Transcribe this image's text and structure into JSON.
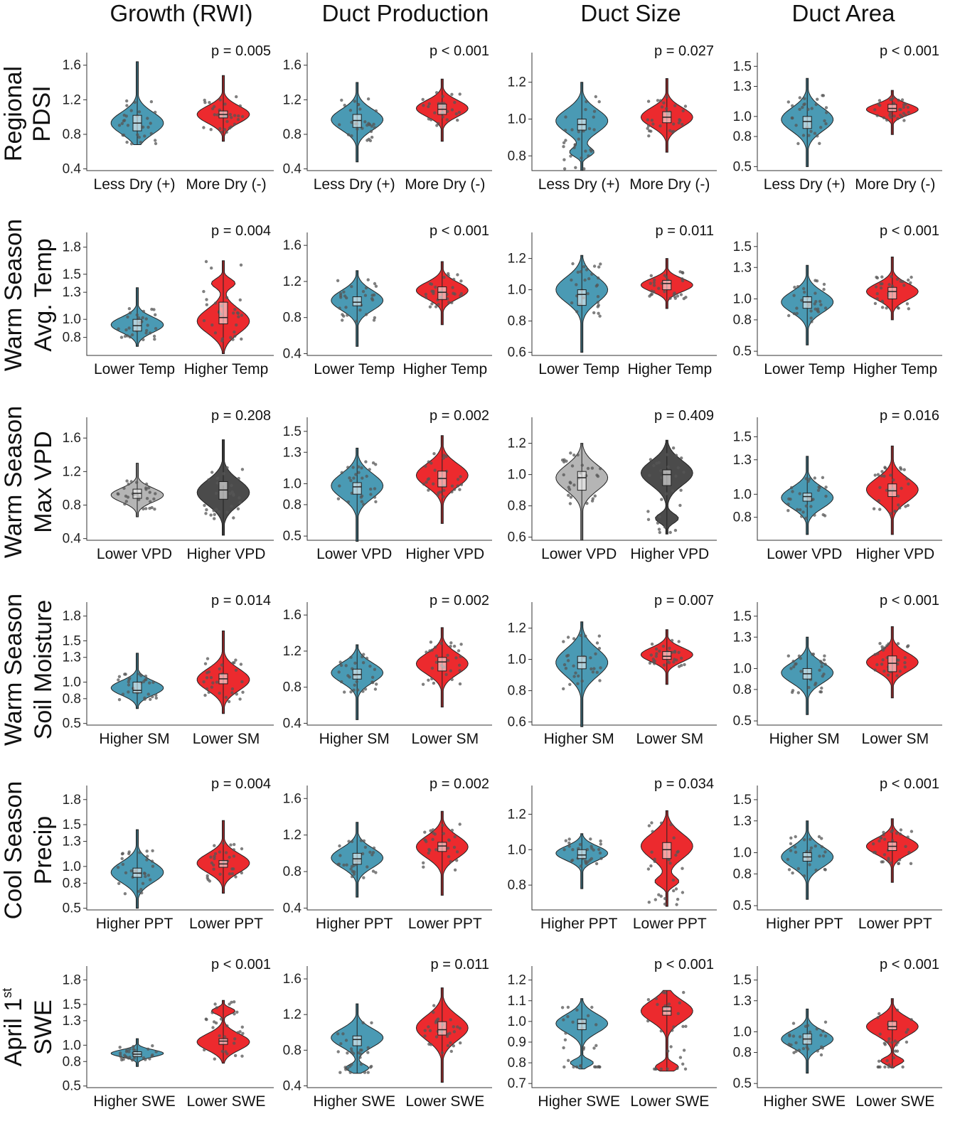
{
  "colors": {
    "blue": "#4a9ab4",
    "red": "#ec2a2e",
    "lightgray": "#b5b5b5",
    "darkgray": "#4b4b4b"
  },
  "columns": [
    "Growth (RWI)",
    "Duct Production",
    "Duct Size",
    "Duct Area"
  ],
  "rows": [
    {
      "title": [
        "Regional",
        "PDSI"
      ],
      "categories": [
        "Less Dry (+)",
        "More Dry (-)"
      ],
      "palette": [
        "blue",
        "red"
      ]
    },
    {
      "title": [
        "Warm Season",
        "Avg. Temp"
      ],
      "categories": [
        "Lower Temp",
        "Higher Temp"
      ],
      "palette": [
        "blue",
        "red"
      ]
    },
    {
      "title": [
        "Warm Season",
        "Max VPD"
      ],
      "categories": [
        "Lower VPD",
        "Higher VPD"
      ],
      "palette": [
        "blue",
        "red"
      ]
    },
    {
      "title": [
        "Warm Season",
        "Soil Moisture"
      ],
      "categories": [
        "Higher SM",
        "Lower SM"
      ],
      "palette": [
        "blue",
        "red"
      ]
    },
    {
      "title": [
        "Cool Season",
        "Precip"
      ],
      "categories": [
        "Higher PPT",
        "Lower PPT"
      ],
      "palette": [
        "blue",
        "red"
      ]
    },
    {
      "title": [
        "April 1",
        "SWE"
      ],
      "title_sup": "st",
      "categories": [
        "Higher SWE",
        "Lower SWE"
      ],
      "palette": [
        "blue",
        "red"
      ]
    }
  ],
  "chart_data": [
    {
      "type": "violin",
      "row": 0,
      "col": 0,
      "p_label": "p = 0.005",
      "yticks": [
        "0.4",
        "0.8",
        "1.2",
        "1.6"
      ],
      "ylim": [
        0.38,
        1.68
      ],
      "medians": [
        0.93,
        1.03
      ],
      "box": [
        [
          0.84,
          1.02
        ],
        [
          0.99,
          1.07
        ]
      ],
      "range": [
        [
          0.68,
          1.64
        ],
        [
          0.72,
          1.48
        ]
      ],
      "modes": [
        [
          0.93
        ],
        [
          1.03
        ]
      ]
    },
    {
      "type": "violin",
      "row": 0,
      "col": 1,
      "p_label": "p < 0.001",
      "yticks": [
        "0.4",
        "0.8",
        "1.2",
        "1.6"
      ],
      "ylim": [
        0.38,
        1.68
      ],
      "medians": [
        0.96,
        1.09
      ],
      "box": [
        [
          0.88,
          1.03
        ],
        [
          1.03,
          1.15
        ]
      ],
      "range": [
        [
          0.48,
          1.4
        ],
        [
          0.72,
          1.44
        ]
      ],
      "modes": [
        [
          0.97
        ],
        [
          1.1
        ]
      ]
    },
    {
      "type": "violin",
      "row": 0,
      "col": 2,
      "p_label": "p = 0.027",
      "yticks": [
        "0.8",
        "1.0",
        "1.2"
      ],
      "ylim": [
        0.72,
        1.33
      ],
      "medians": [
        0.97,
        1.01
      ],
      "box": [
        [
          0.94,
          1.0
        ],
        [
          0.98,
          1.04
        ]
      ],
      "range": [
        [
          0.72,
          1.2
        ],
        [
          0.82,
          1.22
        ]
      ],
      "modes": [
        [
          0.99,
          0.82
        ],
        [
          1.01
        ]
      ]
    },
    {
      "type": "violin",
      "row": 0,
      "col": 3,
      "p_label": "p < 0.001",
      "yticks": [
        "0.5",
        "0.8",
        "1.0",
        "1.3",
        "1.5"
      ],
      "ylim": [
        0.46,
        1.58
      ],
      "medians": [
        0.95,
        1.08
      ],
      "box": [
        [
          0.88,
          1.0
        ],
        [
          1.05,
          1.12
        ]
      ],
      "range": [
        [
          0.5,
          1.38
        ],
        [
          0.82,
          1.26
        ]
      ],
      "modes": [
        [
          0.97
        ],
        [
          1.07
        ]
      ]
    },
    {
      "type": "violin",
      "row": 1,
      "col": 0,
      "p_label": "p = 0.004",
      "yticks": [
        "0.8",
        "1.0",
        "1.3",
        "1.5",
        "1.8"
      ],
      "ylim": [
        0.6,
        1.9
      ],
      "medians": [
        0.93,
        1.02
      ],
      "box": [
        [
          0.87,
          1.0
        ],
        [
          0.95,
          1.19
        ]
      ],
      "range": [
        [
          0.7,
          1.35
        ],
        [
          0.62,
          1.65
        ]
      ],
      "modes": [
        [
          0.94
        ],
        [
          0.98,
          1.4
        ]
      ]
    },
    {
      "type": "violin",
      "row": 1,
      "col": 1,
      "p_label": "p < 0.001",
      "yticks": [
        "0.4",
        "0.8",
        "1.2",
        "1.6"
      ],
      "ylim": [
        0.38,
        1.68
      ],
      "medians": [
        0.97,
        1.08
      ],
      "box": [
        [
          0.93,
          1.03
        ],
        [
          1.0,
          1.14
        ]
      ],
      "range": [
        [
          0.48,
          1.32
        ],
        [
          0.72,
          1.42
        ]
      ],
      "modes": [
        [
          0.99
        ],
        [
          1.1
        ]
      ]
    },
    {
      "type": "violin",
      "row": 1,
      "col": 2,
      "p_label": "p = 0.011",
      "yticks": [
        "0.6",
        "0.8",
        "1.0",
        "1.2"
      ],
      "ylim": [
        0.58,
        1.33
      ],
      "medians": [
        0.97,
        1.04
      ],
      "box": [
        [
          0.9,
          1.0
        ],
        [
          1.0,
          1.06
        ]
      ],
      "range": [
        [
          0.6,
          1.22
        ],
        [
          0.88,
          1.2
        ]
      ],
      "modes": [
        [
          1.0
        ],
        [
          1.03
        ]
      ]
    },
    {
      "type": "violin",
      "row": 1,
      "col": 3,
      "p_label": "p < 0.001",
      "yticks": [
        "0.5",
        "0.8",
        "1.0",
        "1.3",
        "1.5"
      ],
      "ylim": [
        0.46,
        1.58
      ],
      "medians": [
        0.97,
        1.07
      ],
      "box": [
        [
          0.91,
          1.02
        ],
        [
          1.0,
          1.11
        ]
      ],
      "range": [
        [
          0.56,
          1.32
        ],
        [
          0.8,
          1.4
        ]
      ],
      "modes": [
        [
          0.97
        ],
        [
          1.07
        ]
      ]
    },
    {
      "type": "violin",
      "row": 2,
      "col": 0,
      "p_label": "p = 0.208",
      "yticks": [
        "0.4",
        "0.8",
        "1.2",
        "1.6"
      ],
      "ylim": [
        0.38,
        1.78
      ],
      "medians": [
        0.94,
        0.98
      ],
      "box": [
        [
          0.88,
          0.99
        ],
        [
          0.87,
          1.08
        ]
      ],
      "range": [
        [
          0.66,
          1.3
        ],
        [
          0.44,
          1.58
        ]
      ],
      "modes": [
        [
          0.92
        ],
        [
          0.95
        ]
      ]
    },
    {
      "type": "violin",
      "row": 2,
      "col": 1,
      "p_label": "p = 0.002",
      "yticks": [
        "0.5",
        "0.8",
        "1.0",
        "1.3",
        "1.5"
      ],
      "ylim": [
        0.46,
        1.58
      ],
      "medians": [
        0.97,
        1.05
      ],
      "box": [
        [
          0.9,
          1.01
        ],
        [
          0.97,
          1.12
        ]
      ],
      "range": [
        [
          0.45,
          1.34
        ],
        [
          0.62,
          1.46
        ]
      ],
      "modes": [
        [
          0.98
        ],
        [
          1.08
        ]
      ]
    },
    {
      "type": "violin",
      "row": 2,
      "col": 2,
      "p_label": "p = 0.409",
      "yticks": [
        "0.6",
        "0.8",
        "1.0",
        "1.2"
      ],
      "ylim": [
        0.58,
        1.33
      ],
      "medians": [
        0.98,
        1.0
      ],
      "box": [
        [
          0.9,
          1.02
        ],
        [
          0.93,
          1.03
        ]
      ],
      "range": [
        [
          0.58,
          1.2
        ],
        [
          0.62,
          1.22
        ]
      ],
      "modes": [
        [
          0.98
        ],
        [
          1.01,
          0.72
        ]
      ]
    },
    {
      "type": "violin",
      "row": 2,
      "col": 3,
      "p_label": "p = 0.016",
      "yticks": [
        "0.8",
        "1.0",
        "1.3",
        "1.5"
      ],
      "ylim": [
        0.6,
        1.62
      ],
      "medians": [
        0.98,
        1.03
      ],
      "box": [
        [
          0.94,
          1.01
        ],
        [
          0.98,
          1.09
        ]
      ],
      "range": [
        [
          0.65,
          1.33
        ],
        [
          0.65,
          1.42
        ]
      ],
      "modes": [
        [
          0.97
        ],
        [
          1.04
        ]
      ]
    },
    {
      "type": "violin",
      "row": 3,
      "col": 0,
      "p_label": "p = 0.014",
      "yticks": [
        "0.5",
        "0.8",
        "1.0",
        "1.3",
        "1.5",
        "1.8"
      ],
      "ylim": [
        0.48,
        1.9
      ],
      "medians": [
        0.9,
        1.04
      ],
      "box": [
        [
          0.87,
          1.0
        ],
        [
          0.98,
          1.1
        ]
      ],
      "range": [
        [
          0.68,
          1.35
        ],
        [
          0.62,
          1.62
        ]
      ],
      "modes": [
        [
          0.93
        ],
        [
          1.03
        ]
      ]
    },
    {
      "type": "violin",
      "row": 3,
      "col": 1,
      "p_label": "p = 0.002",
      "yticks": [
        "0.4",
        "0.8",
        "1.2",
        "1.6"
      ],
      "ylim": [
        0.38,
        1.68
      ],
      "medians": [
        0.94,
        1.08
      ],
      "box": [
        [
          0.89,
          1.0
        ],
        [
          0.98,
          1.13
        ]
      ],
      "range": [
        [
          0.44,
          1.27
        ],
        [
          0.58,
          1.46
        ]
      ],
      "modes": [
        [
          0.96
        ],
        [
          1.06
        ]
      ]
    },
    {
      "type": "violin",
      "row": 3,
      "col": 2,
      "p_label": "p = 0.007",
      "yticks": [
        "0.6",
        "0.8",
        "1.0",
        "1.2"
      ],
      "ylim": [
        0.58,
        1.33
      ],
      "medians": [
        0.98,
        1.02
      ],
      "box": [
        [
          0.94,
          1.02
        ],
        [
          1.0,
          1.05
        ]
      ],
      "range": [
        [
          0.57,
          1.24
        ],
        [
          0.84,
          1.19
        ]
      ],
      "modes": [
        [
          0.98
        ],
        [
          1.03
        ]
      ]
    },
    {
      "type": "violin",
      "row": 3,
      "col": 3,
      "p_label": "p < 0.001",
      "yticks": [
        "0.5",
        "0.8",
        "1.0",
        "1.3",
        "1.5"
      ],
      "ylim": [
        0.46,
        1.58
      ],
      "medians": [
        0.95,
        1.05
      ],
      "box": [
        [
          0.9,
          1.0
        ],
        [
          0.97,
          1.12
        ]
      ],
      "range": [
        [
          0.56,
          1.3
        ],
        [
          0.72,
          1.4
        ]
      ],
      "modes": [
        [
          0.96
        ],
        [
          1.06
        ]
      ]
    },
    {
      "type": "violin",
      "row": 4,
      "col": 0,
      "p_label": "p = 0.004",
      "yticks": [
        "0.5",
        "0.8",
        "1.0",
        "1.3",
        "1.5",
        "1.8"
      ],
      "ylim": [
        0.48,
        1.9
      ],
      "medians": [
        0.92,
        1.03
      ],
      "box": [
        [
          0.87,
          0.98
        ],
        [
          0.99,
          1.07
        ]
      ],
      "range": [
        [
          0.5,
          1.44
        ],
        [
          0.68,
          1.55
        ]
      ],
      "modes": [
        [
          0.93
        ],
        [
          1.04
        ]
      ]
    },
    {
      "type": "violin",
      "row": 4,
      "col": 1,
      "p_label": "p = 0.002",
      "yticks": [
        "0.4",
        "0.8",
        "1.2",
        "1.6"
      ],
      "ylim": [
        0.38,
        1.68
      ],
      "medians": [
        0.94,
        1.08
      ],
      "box": [
        [
          0.88,
          1.0
        ],
        [
          1.02,
          1.12
        ]
      ],
      "range": [
        [
          0.52,
          1.34
        ],
        [
          0.54,
          1.46
        ]
      ],
      "modes": [
        [
          0.95
        ],
        [
          1.07
        ]
      ]
    },
    {
      "type": "violin",
      "row": 4,
      "col": 2,
      "p_label": "p = 0.034",
      "yticks": [
        "0.8",
        "1.0",
        "1.2"
      ],
      "ylim": [
        0.66,
        1.33
      ],
      "medians": [
        0.97,
        1.0
      ],
      "box": [
        [
          0.95,
          1.0
        ],
        [
          0.95,
          1.04
        ]
      ],
      "range": [
        [
          0.78,
          1.09
        ],
        [
          0.68,
          1.22
        ]
      ],
      "modes": [
        [
          0.98
        ],
        [
          1.02,
          0.82
        ]
      ]
    },
    {
      "type": "violin",
      "row": 4,
      "col": 3,
      "p_label": "p < 0.001",
      "yticks": [
        "0.5",
        "0.8",
        "1.0",
        "1.3",
        "1.5"
      ],
      "ylim": [
        0.46,
        1.58
      ],
      "medians": [
        0.96,
        1.06
      ],
      "box": [
        [
          0.92,
          1.0
        ],
        [
          1.02,
          1.1
        ]
      ],
      "range": [
        [
          0.56,
          1.3
        ],
        [
          0.72,
          1.32
        ]
      ],
      "modes": [
        [
          0.96
        ],
        [
          1.06
        ]
      ]
    },
    {
      "type": "violin",
      "row": 5,
      "col": 0,
      "p_label": "p < 0.001",
      "yticks": [
        "0.5",
        "0.8",
        "1.0",
        "1.3",
        "1.5",
        "1.8"
      ],
      "ylim": [
        0.48,
        1.9
      ],
      "medians": [
        0.89,
        1.05
      ],
      "box": [
        [
          0.86,
          0.92
        ],
        [
          1.01,
          1.08
        ]
      ],
      "range": [
        [
          0.74,
          1.08
        ],
        [
          0.78,
          1.55
        ]
      ],
      "modes": [
        [
          0.9
        ],
        [
          1.04,
          1.42
        ]
      ]
    },
    {
      "type": "violin",
      "row": 5,
      "col": 1,
      "p_label": "p = 0.011",
      "yticks": [
        "0.4",
        "0.8",
        "1.2",
        "1.6"
      ],
      "ylim": [
        0.38,
        1.68
      ],
      "medians": [
        0.92,
        1.03
      ],
      "box": [
        [
          0.85,
          0.96
        ],
        [
          0.97,
          1.12
        ]
      ],
      "range": [
        [
          0.54,
          1.32
        ],
        [
          0.44,
          1.5
        ]
      ],
      "modes": [
        [
          0.94,
          0.6
        ],
        [
          1.05
        ]
      ]
    },
    {
      "type": "violin",
      "row": 5,
      "col": 2,
      "p_label": "p < 0.001",
      "yticks": [
        "0.7",
        "0.8",
        "0.9",
        "1.0",
        "1.1",
        "1.2"
      ],
      "ylim": [
        0.68,
        1.24
      ],
      "medians": [
        0.99,
        1.05
      ],
      "box": [
        [
          0.96,
          1.01
        ],
        [
          1.03,
          1.07
        ]
      ],
      "range": [
        [
          0.77,
          1.11
        ],
        [
          0.76,
          1.15
        ]
      ],
      "modes": [
        [
          0.99,
          0.8
        ],
        [
          1.05,
          0.78
        ]
      ]
    },
    {
      "type": "violin",
      "row": 5,
      "col": 3,
      "p_label": "p < 0.001",
      "yticks": [
        "0.5",
        "0.8",
        "1.0",
        "1.3",
        "1.5"
      ],
      "ylim": [
        0.46,
        1.58
      ],
      "medians": [
        0.93,
        1.05
      ],
      "box": [
        [
          0.88,
          0.98
        ],
        [
          1.02,
          1.1
        ]
      ],
      "range": [
        [
          0.6,
          1.22
        ],
        [
          0.65,
          1.32
        ]
      ],
      "modes": [
        [
          0.93
        ],
        [
          1.05,
          0.72
        ]
      ]
    }
  ]
}
